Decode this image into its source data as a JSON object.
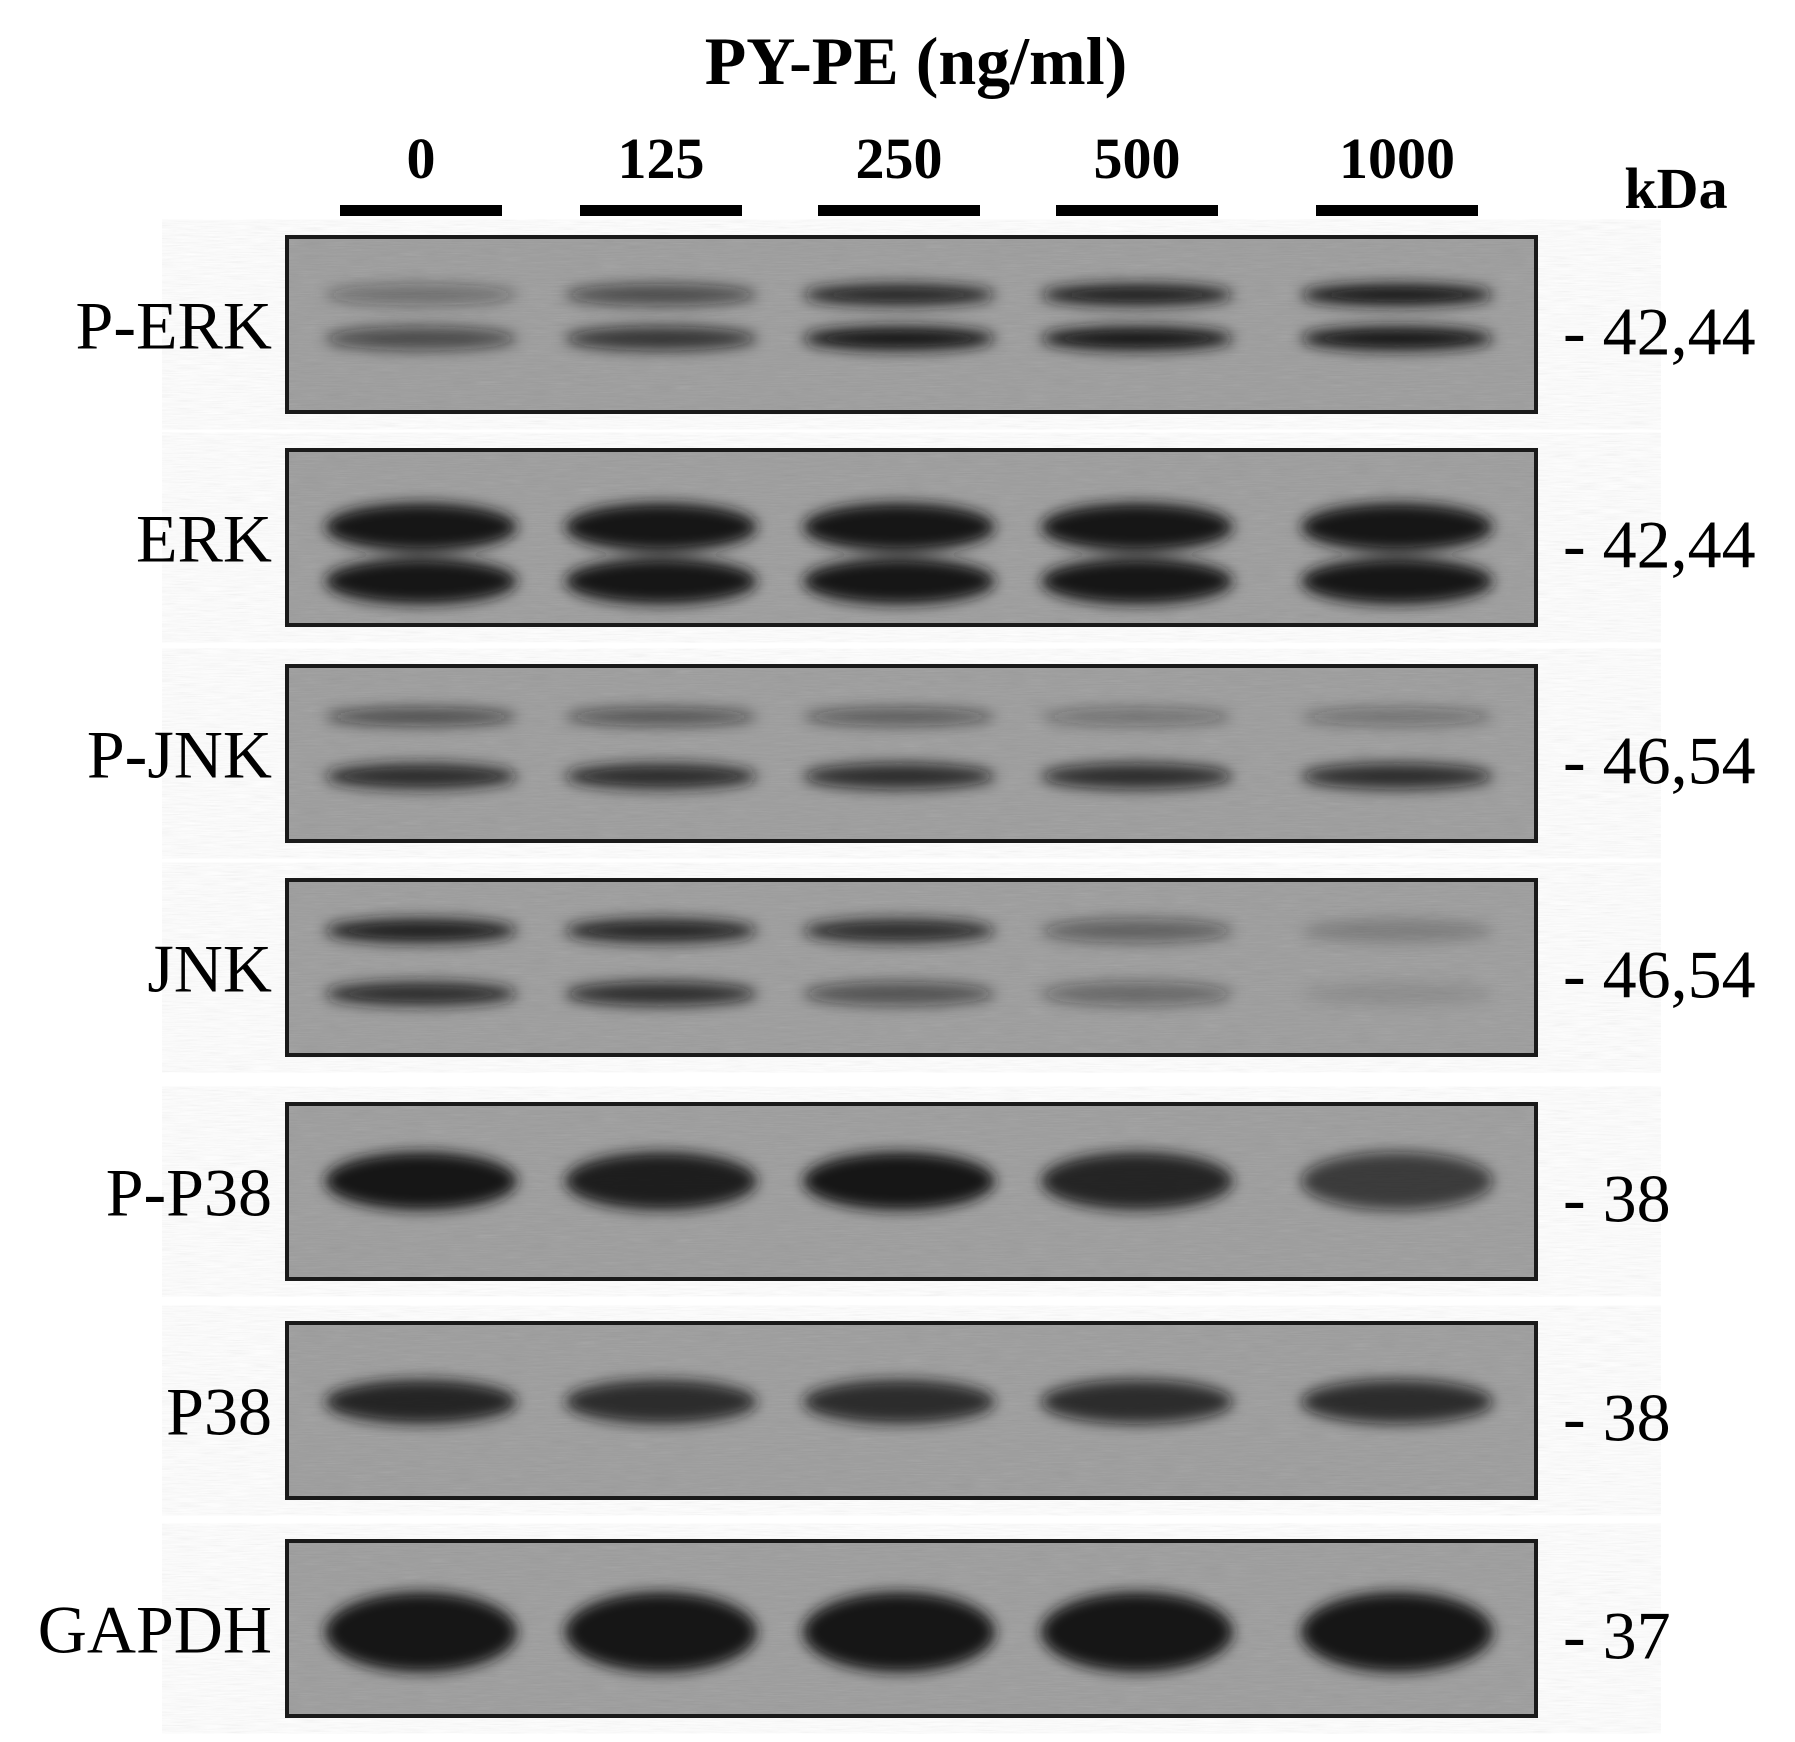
{
  "title": "PY-PE (ng/ml)",
  "unit_label": "kDa",
  "lanes": [
    {
      "label": "0"
    },
    {
      "label": "125"
    },
    {
      "label": "250"
    },
    {
      "label": "500"
    },
    {
      "label": "1000"
    }
  ],
  "panels": [
    {
      "protein": "P-ERK",
      "kda": "- 42,44"
    },
    {
      "protein": "ERK",
      "kda": "- 42,44"
    },
    {
      "protein": "P-JNK",
      "kda": "- 46,54"
    },
    {
      "protein": "JNK",
      "kda": "- 46,54"
    },
    {
      "protein": "P-P38",
      "kda": "- 38"
    },
    {
      "protein": "P38",
      "kda": "- 38"
    },
    {
      "protein": "GAPDH",
      "kda": "- 37"
    }
  ],
  "colors": {
    "membrane": "#9c9c9c",
    "band": "#141414",
    "border": "#1a1a1a"
  }
}
